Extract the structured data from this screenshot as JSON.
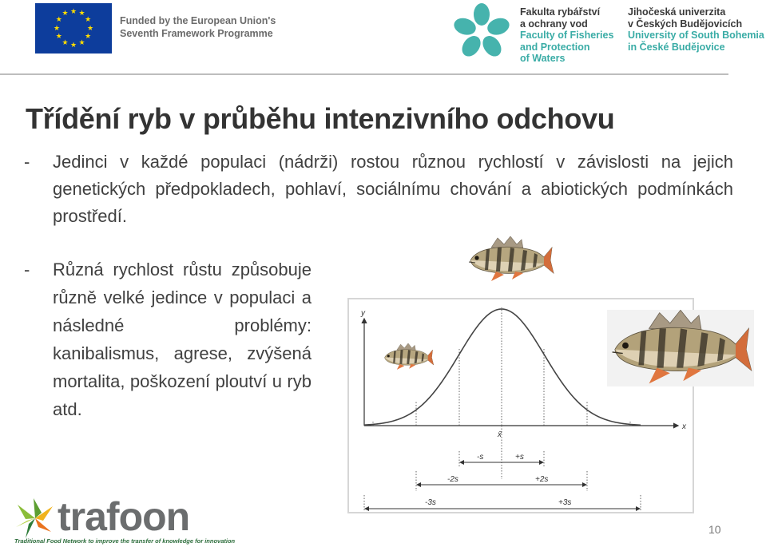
{
  "header": {
    "eu_text": [
      "Funded by the European Union's",
      "Seventh Framework Programme"
    ],
    "faculty_cz": [
      "Fakulta rybářství",
      "a ochrany vod"
    ],
    "faculty_en": [
      "Faculty of Fisheries",
      "and Protection",
      "of Waters"
    ],
    "uni_cz": [
      "Jihočeská univerzita",
      "v Českých Budějovicích"
    ],
    "uni_en": [
      "University of South Bohemia",
      "in České Budějovice"
    ]
  },
  "slide": {
    "title": "Třídění ryb v průběhu intenzivního odchovu",
    "bullets": [
      {
        "dash": "-",
        "text": "Jedinci v  každé populaci (nádrži) rostou různou rychlostí v závislosti na jejich genetických předpokladech, pohlaví, sociálnímu chování a abiotických podmínkách prostředí."
      },
      {
        "dash": "-",
        "text": "Různá rychlost růstu způsobuje různě velké jedince v populaci a následné problémy: kanibalismus, agrese, zvýšená mortalita, poškození ploutví u ryb atd."
      }
    ]
  },
  "figure": {
    "axis_y": "y",
    "axis_x": "x",
    "mean_label": "x̄",
    "labels": [
      "-s",
      "+s",
      "-2s",
      "+2s",
      "-3s",
      "+3s"
    ]
  },
  "colors": {
    "eu_blue": "#0d3d9c",
    "eu_star": "#ffdd00",
    "teal": "#3aaca6"
  },
  "footer": {
    "brand": "trafoon",
    "tagline": "Traditional Food Network to improve the transfer of knowledge for innovation",
    "page_number": "10"
  }
}
